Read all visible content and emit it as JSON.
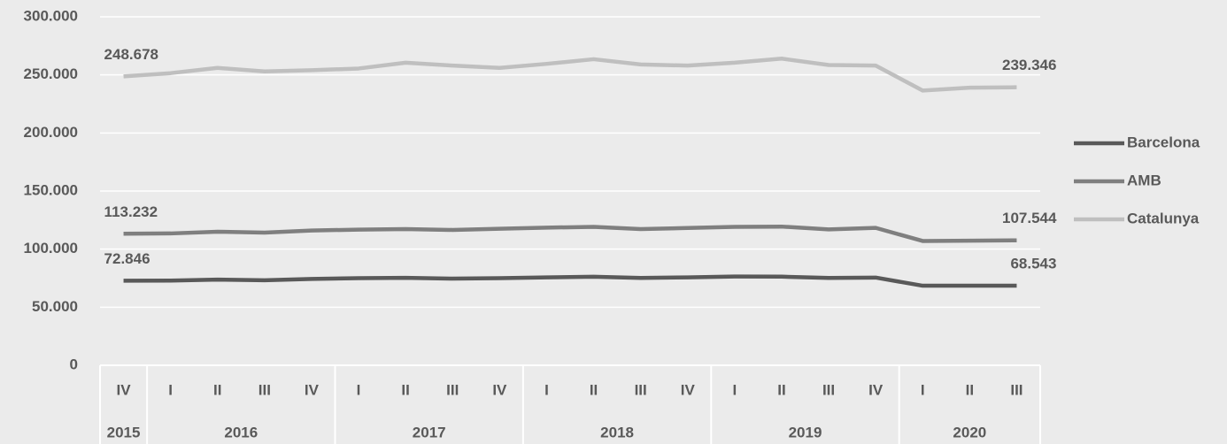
{
  "chart_data": {
    "type": "line",
    "category_groups": [
      {
        "label": "2015",
        "categories": [
          "IV"
        ]
      },
      {
        "label": "2016",
        "categories": [
          "I",
          "II",
          "III",
          "IV"
        ]
      },
      {
        "label": "2017",
        "categories": [
          "I",
          "II",
          "III",
          "IV"
        ]
      },
      {
        "label": "2018",
        "categories": [
          "I",
          "II",
          "III",
          "IV"
        ]
      },
      {
        "label": "2019",
        "categories": [
          "I",
          "II",
          "III",
          "IV"
        ]
      },
      {
        "label": "2020",
        "categories": [
          "I",
          "II",
          "III"
        ]
      }
    ],
    "series": [
      {
        "name": "Barcelona",
        "color": "#595959",
        "values": [
          72846,
          72900,
          73800,
          73200,
          74300,
          75000,
          75300,
          74600,
          75000,
          75700,
          76200,
          75200,
          75700,
          76400,
          76300,
          75200,
          75500,
          68500,
          68500,
          68543
        ],
        "value_labels": [
          "72.846",
          null,
          null,
          null,
          null,
          null,
          null,
          null,
          null,
          null,
          null,
          null,
          null,
          null,
          null,
          null,
          null,
          null,
          null,
          "68.543"
        ]
      },
      {
        "name": "AMB",
        "color": "#7f7f7f",
        "values": [
          113232,
          113500,
          115000,
          114200,
          116000,
          116800,
          117300,
          116500,
          117500,
          118500,
          119200,
          117300,
          118200,
          119200,
          119400,
          117000,
          118300,
          107000,
          107300,
          107544
        ],
        "value_labels": [
          "113.232",
          null,
          null,
          null,
          null,
          null,
          null,
          null,
          null,
          null,
          null,
          null,
          null,
          null,
          null,
          null,
          null,
          null,
          null,
          "107.544"
        ]
      },
      {
        "name": "Catalunya",
        "color": "#bfbfbf",
        "values": [
          248678,
          251500,
          256000,
          253000,
          254000,
          255500,
          260500,
          258000,
          256000,
          259500,
          263500,
          259000,
          258000,
          260500,
          264000,
          258500,
          258000,
          236500,
          239000,
          239346
        ],
        "value_labels": [
          "248.678",
          null,
          null,
          null,
          null,
          null,
          null,
          null,
          null,
          null,
          null,
          null,
          null,
          null,
          null,
          null,
          null,
          null,
          null,
          "239.346"
        ]
      }
    ],
    "ylim": [
      0,
      300000
    ],
    "yticks": [
      {
        "value": 0,
        "label": "0"
      },
      {
        "value": 50000,
        "label": "50.000"
      },
      {
        "value": 100000,
        "label": "100.000"
      },
      {
        "value": 150000,
        "label": "150.000"
      },
      {
        "value": 200000,
        "label": "200.000"
      },
      {
        "value": 250000,
        "label": "250.000"
      },
      {
        "value": 300000,
        "label": "300.000"
      }
    ],
    "grid": true,
    "legend": "right"
  }
}
